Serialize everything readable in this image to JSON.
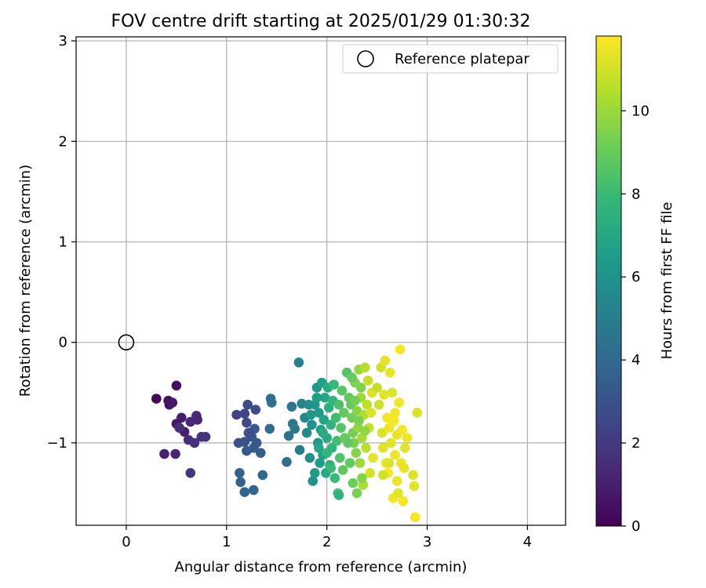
{
  "chart_data": {
    "type": "scatter",
    "title": "FOV centre drift starting at 2025/01/29 01:30:32",
    "xlabel": "Angular distance from reference (arcmin)",
    "ylabel": "Rotation from reference (arcmin)",
    "xlim": [
      -0.5,
      4.38
    ],
    "ylim": [
      -1.82,
      3.04
    ],
    "xticks": [
      "0",
      "1",
      "2",
      "3",
      "4"
    ],
    "xtick_values": [
      0,
      1,
      2,
      3,
      4
    ],
    "yticks": [
      "−1",
      "0",
      "1",
      "2",
      "3"
    ],
    "ytick_values": [
      -1,
      0,
      1,
      2,
      3
    ],
    "grid": true,
    "legend": {
      "placement": "top-right",
      "entries": [
        {
          "label": "Reference platepar",
          "marker": "open-circle"
        }
      ]
    },
    "reference_point": {
      "x": 0,
      "y": 0,
      "label": "Reference platepar"
    },
    "colorbar": {
      "label": "Hours from first FF file",
      "range": [
        0,
        11.8
      ],
      "ticks": [
        "0",
        "2",
        "4",
        "6",
        "8",
        "10"
      ],
      "tick_values": [
        0,
        2,
        4,
        6,
        8,
        10
      ],
      "colormap": "viridis",
      "colors": [
        "#440154",
        "#482878",
        "#3e4989",
        "#31688e",
        "#26828e",
        "#1f9e89",
        "#35b779",
        "#6ece58",
        "#b5de2b",
        "#fde725"
      ]
    },
    "series": [
      {
        "marker": "filled-circle",
        "points": [
          [
            0.3,
            -0.56,
            0.2
          ],
          [
            0.5,
            -0.43,
            0.4
          ],
          [
            0.42,
            -0.58,
            0.5
          ],
          [
            0.43,
            -0.62,
            0.6
          ],
          [
            0.46,
            -0.6,
            0.7
          ],
          [
            0.5,
            -0.81,
            0.8
          ],
          [
            0.55,
            -0.75,
            0.9
          ],
          [
            0.58,
            -0.89,
            1.0
          ],
          [
            0.38,
            -1.11,
            1.1
          ],
          [
            0.49,
            -1.11,
            1.2
          ],
          [
            0.64,
            -0.79,
            1.3
          ],
          [
            0.7,
            -0.73,
            1.4
          ],
          [
            0.62,
            -0.97,
            1.5
          ],
          [
            0.68,
            -1.0,
            1.6
          ],
          [
            0.75,
            -0.94,
            1.7
          ],
          [
            0.79,
            -0.94,
            1.8
          ],
          [
            0.64,
            -1.3,
            1.9
          ],
          [
            0.53,
            -0.85,
            1.5
          ],
          [
            0.71,
            -0.77,
            1.2
          ],
          [
            1.1,
            -0.72,
            2.4
          ],
          [
            1.18,
            -0.71,
            2.5
          ],
          [
            1.2,
            -0.8,
            2.6
          ],
          [
            1.21,
            -0.62,
            2.7
          ],
          [
            1.29,
            -0.67,
            2.8
          ],
          [
            1.12,
            -1.0,
            2.9
          ],
          [
            1.18,
            -0.99,
            3.0
          ],
          [
            1.25,
            -0.94,
            3.1
          ],
          [
            1.28,
            -0.86,
            3.2
          ],
          [
            1.2,
            -1.08,
            3.3
          ],
          [
            1.27,
            -1.05,
            3.4
          ],
          [
            1.34,
            -1.1,
            3.5
          ],
          [
            1.13,
            -1.3,
            3.6
          ],
          [
            1.14,
            -1.39,
            3.7
          ],
          [
            1.18,
            -1.49,
            3.8
          ],
          [
            1.27,
            -1.47,
            3.9
          ],
          [
            1.36,
            -1.32,
            4.0
          ],
          [
            1.43,
            -0.86,
            4.1
          ],
          [
            1.44,
            -0.56,
            4.2
          ],
          [
            1.45,
            -0.6,
            4.3
          ],
          [
            1.6,
            -1.19,
            4.4
          ],
          [
            1.62,
            -0.93,
            4.5
          ],
          [
            1.65,
            -0.64,
            4.6
          ],
          [
            1.66,
            -0.81,
            4.7
          ],
          [
            1.68,
            -0.86,
            4.8
          ],
          [
            1.73,
            -1.07,
            4.9
          ],
          [
            1.3,
            -1.0,
            3.2
          ],
          [
            1.22,
            -0.9,
            2.8
          ],
          [
            1.72,
            -0.2,
            5.2
          ],
          [
            1.75,
            -0.61,
            5.4
          ],
          [
            1.78,
            -0.75,
            5.5
          ],
          [
            1.8,
            -0.9,
            5.6
          ],
          [
            1.82,
            -0.62,
            5.7
          ],
          [
            1.83,
            -1.15,
            5.8
          ],
          [
            1.85,
            -0.82,
            5.9
          ],
          [
            1.86,
            -1.38,
            6.0
          ],
          [
            1.88,
            -0.62,
            6.1
          ],
          [
            1.9,
            -0.45,
            6.2
          ],
          [
            1.91,
            -1.0,
            6.3
          ],
          [
            1.92,
            -0.7,
            6.4
          ],
          [
            1.93,
            -1.2,
            6.5
          ],
          [
            1.94,
            -0.87,
            6.6
          ],
          [
            1.95,
            -0.4,
            6.7
          ],
          [
            1.96,
            -1.12,
            6.8
          ],
          [
            1.97,
            -0.77,
            6.9
          ],
          [
            1.98,
            -0.55,
            7.0
          ],
          [
            1.99,
            -1.3,
            7.1
          ],
          [
            2.0,
            -0.95,
            7.2
          ],
          [
            2.01,
            -0.45,
            7.3
          ],
          [
            2.02,
            -0.65,
            7.4
          ],
          [
            2.03,
            -1.22,
            7.5
          ],
          [
            2.04,
            -0.82,
            7.6
          ],
          [
            2.05,
            -1.05,
            7.7
          ],
          [
            2.06,
            -0.58,
            7.8
          ],
          [
            2.07,
            -0.42,
            7.9
          ],
          [
            2.08,
            -1.35,
            8.0
          ],
          [
            2.09,
            -0.75,
            8.1
          ],
          [
            2.1,
            -0.98,
            8.2
          ],
          [
            2.11,
            -1.5,
            8.3
          ],
          [
            2.12,
            -0.62,
            8.4
          ],
          [
            2.13,
            -1.15,
            8.5
          ],
          [
            2.14,
            -0.85,
            8.6
          ],
          [
            2.15,
            -0.48,
            8.7
          ],
          [
            2.16,
            -1.27,
            8.8
          ],
          [
            2.17,
            -0.7,
            8.9
          ],
          [
            2.18,
            -0.95,
            9.0
          ],
          [
            1.88,
            -1.3,
            6.4
          ],
          [
            1.92,
            -1.05,
            6.9
          ],
          [
            1.96,
            -0.9,
            7.3
          ],
          [
            2.0,
            -1.1,
            7.7
          ],
          [
            2.04,
            -1.25,
            7.9
          ],
          [
            2.12,
            -1.52,
            7.6
          ],
          [
            1.84,
            -0.72,
            6.2
          ],
          [
            1.9,
            -0.55,
            6.6
          ],
          [
            2.2,
            -0.3,
            8.6
          ],
          [
            2.22,
            -0.55,
            8.8
          ],
          [
            2.24,
            -0.62,
            9.0
          ],
          [
            2.25,
            -0.75,
            9.2
          ],
          [
            2.26,
            -0.9,
            9.3
          ],
          [
            2.27,
            -1.0,
            9.4
          ],
          [
            2.28,
            -0.4,
            9.5
          ],
          [
            2.29,
            -1.1,
            9.6
          ],
          [
            2.3,
            -0.68,
            9.7
          ],
          [
            2.31,
            -0.85,
            9.8
          ],
          [
            2.32,
            -0.27,
            9.9
          ],
          [
            2.33,
            -1.2,
            10.0
          ],
          [
            2.34,
            -0.55,
            10.1
          ],
          [
            2.35,
            -0.95,
            10.2
          ],
          [
            2.36,
            -1.42,
            10.3
          ],
          [
            2.37,
            -0.72,
            10.4
          ],
          [
            2.38,
            -0.25,
            10.5
          ],
          [
            2.39,
            -1.05,
            10.6
          ],
          [
            2.4,
            -0.62,
            10.7
          ],
          [
            2.41,
            -0.38,
            10.8
          ],
          [
            2.42,
            -0.85,
            10.9
          ],
          [
            2.43,
            -1.3,
            11.0
          ],
          [
            2.44,
            -0.7,
            11.1
          ],
          [
            2.45,
            -0.5,
            11.2
          ],
          [
            2.46,
            -1.15,
            11.3
          ],
          [
            2.25,
            -0.35,
            9.0
          ],
          [
            2.28,
            -0.58,
            9.2
          ],
          [
            2.32,
            -0.78,
            9.4
          ],
          [
            2.35,
            -1.35,
            9.6
          ],
          [
            2.38,
            -0.88,
            9.8
          ],
          [
            2.21,
            -1.0,
            8.8
          ],
          [
            2.23,
            -1.2,
            8.9
          ],
          [
            2.26,
            -1.4,
            9.1
          ],
          [
            2.3,
            -1.5,
            9.3
          ],
          [
            2.34,
            -0.45,
            9.5
          ],
          [
            2.5,
            -0.45,
            10.8
          ],
          [
            2.52,
            -0.62,
            10.9
          ],
          [
            2.54,
            -0.25,
            11.0
          ],
          [
            2.55,
            -0.9,
            11.1
          ],
          [
            2.56,
            -1.05,
            11.2
          ],
          [
            2.57,
            -0.52,
            11.3
          ],
          [
            2.58,
            -0.18,
            11.4
          ],
          [
            2.59,
            -1.2,
            11.5
          ],
          [
            2.6,
            -0.75,
            11.6
          ],
          [
            2.61,
            -1.3,
            11.7
          ],
          [
            2.62,
            -0.85,
            11.5
          ],
          [
            2.63,
            -0.3,
            11.4
          ],
          [
            2.64,
            -1.0,
            11.3
          ],
          [
            2.65,
            -0.5,
            11.2
          ],
          [
            2.66,
            -1.55,
            11.6
          ],
          [
            2.67,
            -0.78,
            11.7
          ],
          [
            2.68,
            -1.12,
            11.5
          ],
          [
            2.7,
            -0.92,
            11.4
          ],
          [
            2.71,
            -1.5,
            11.3
          ],
          [
            2.72,
            -0.6,
            11.6
          ],
          [
            2.73,
            -0.07,
            11.7
          ],
          [
            2.74,
            -1.2,
            11.5
          ],
          [
            2.75,
            -0.87,
            11.6
          ],
          [
            2.76,
            -1.58,
            11.7
          ],
          [
            2.77,
            -1.25,
            11.4
          ],
          [
            2.78,
            -1.05,
            11.3
          ],
          [
            2.8,
            -0.95,
            11.5
          ],
          [
            2.86,
            -1.32,
            11.2
          ],
          [
            2.87,
            -1.43,
            11.3
          ],
          [
            2.88,
            -1.74,
            11.7
          ],
          [
            2.9,
            -0.7,
            11.1
          ],
          [
            2.56,
            -1.32,
            11.0
          ],
          [
            2.62,
            -1.2,
            11.2
          ],
          [
            2.68,
            -0.7,
            11.6
          ],
          [
            2.7,
            -1.38,
            11.5
          ]
        ]
      }
    ]
  }
}
